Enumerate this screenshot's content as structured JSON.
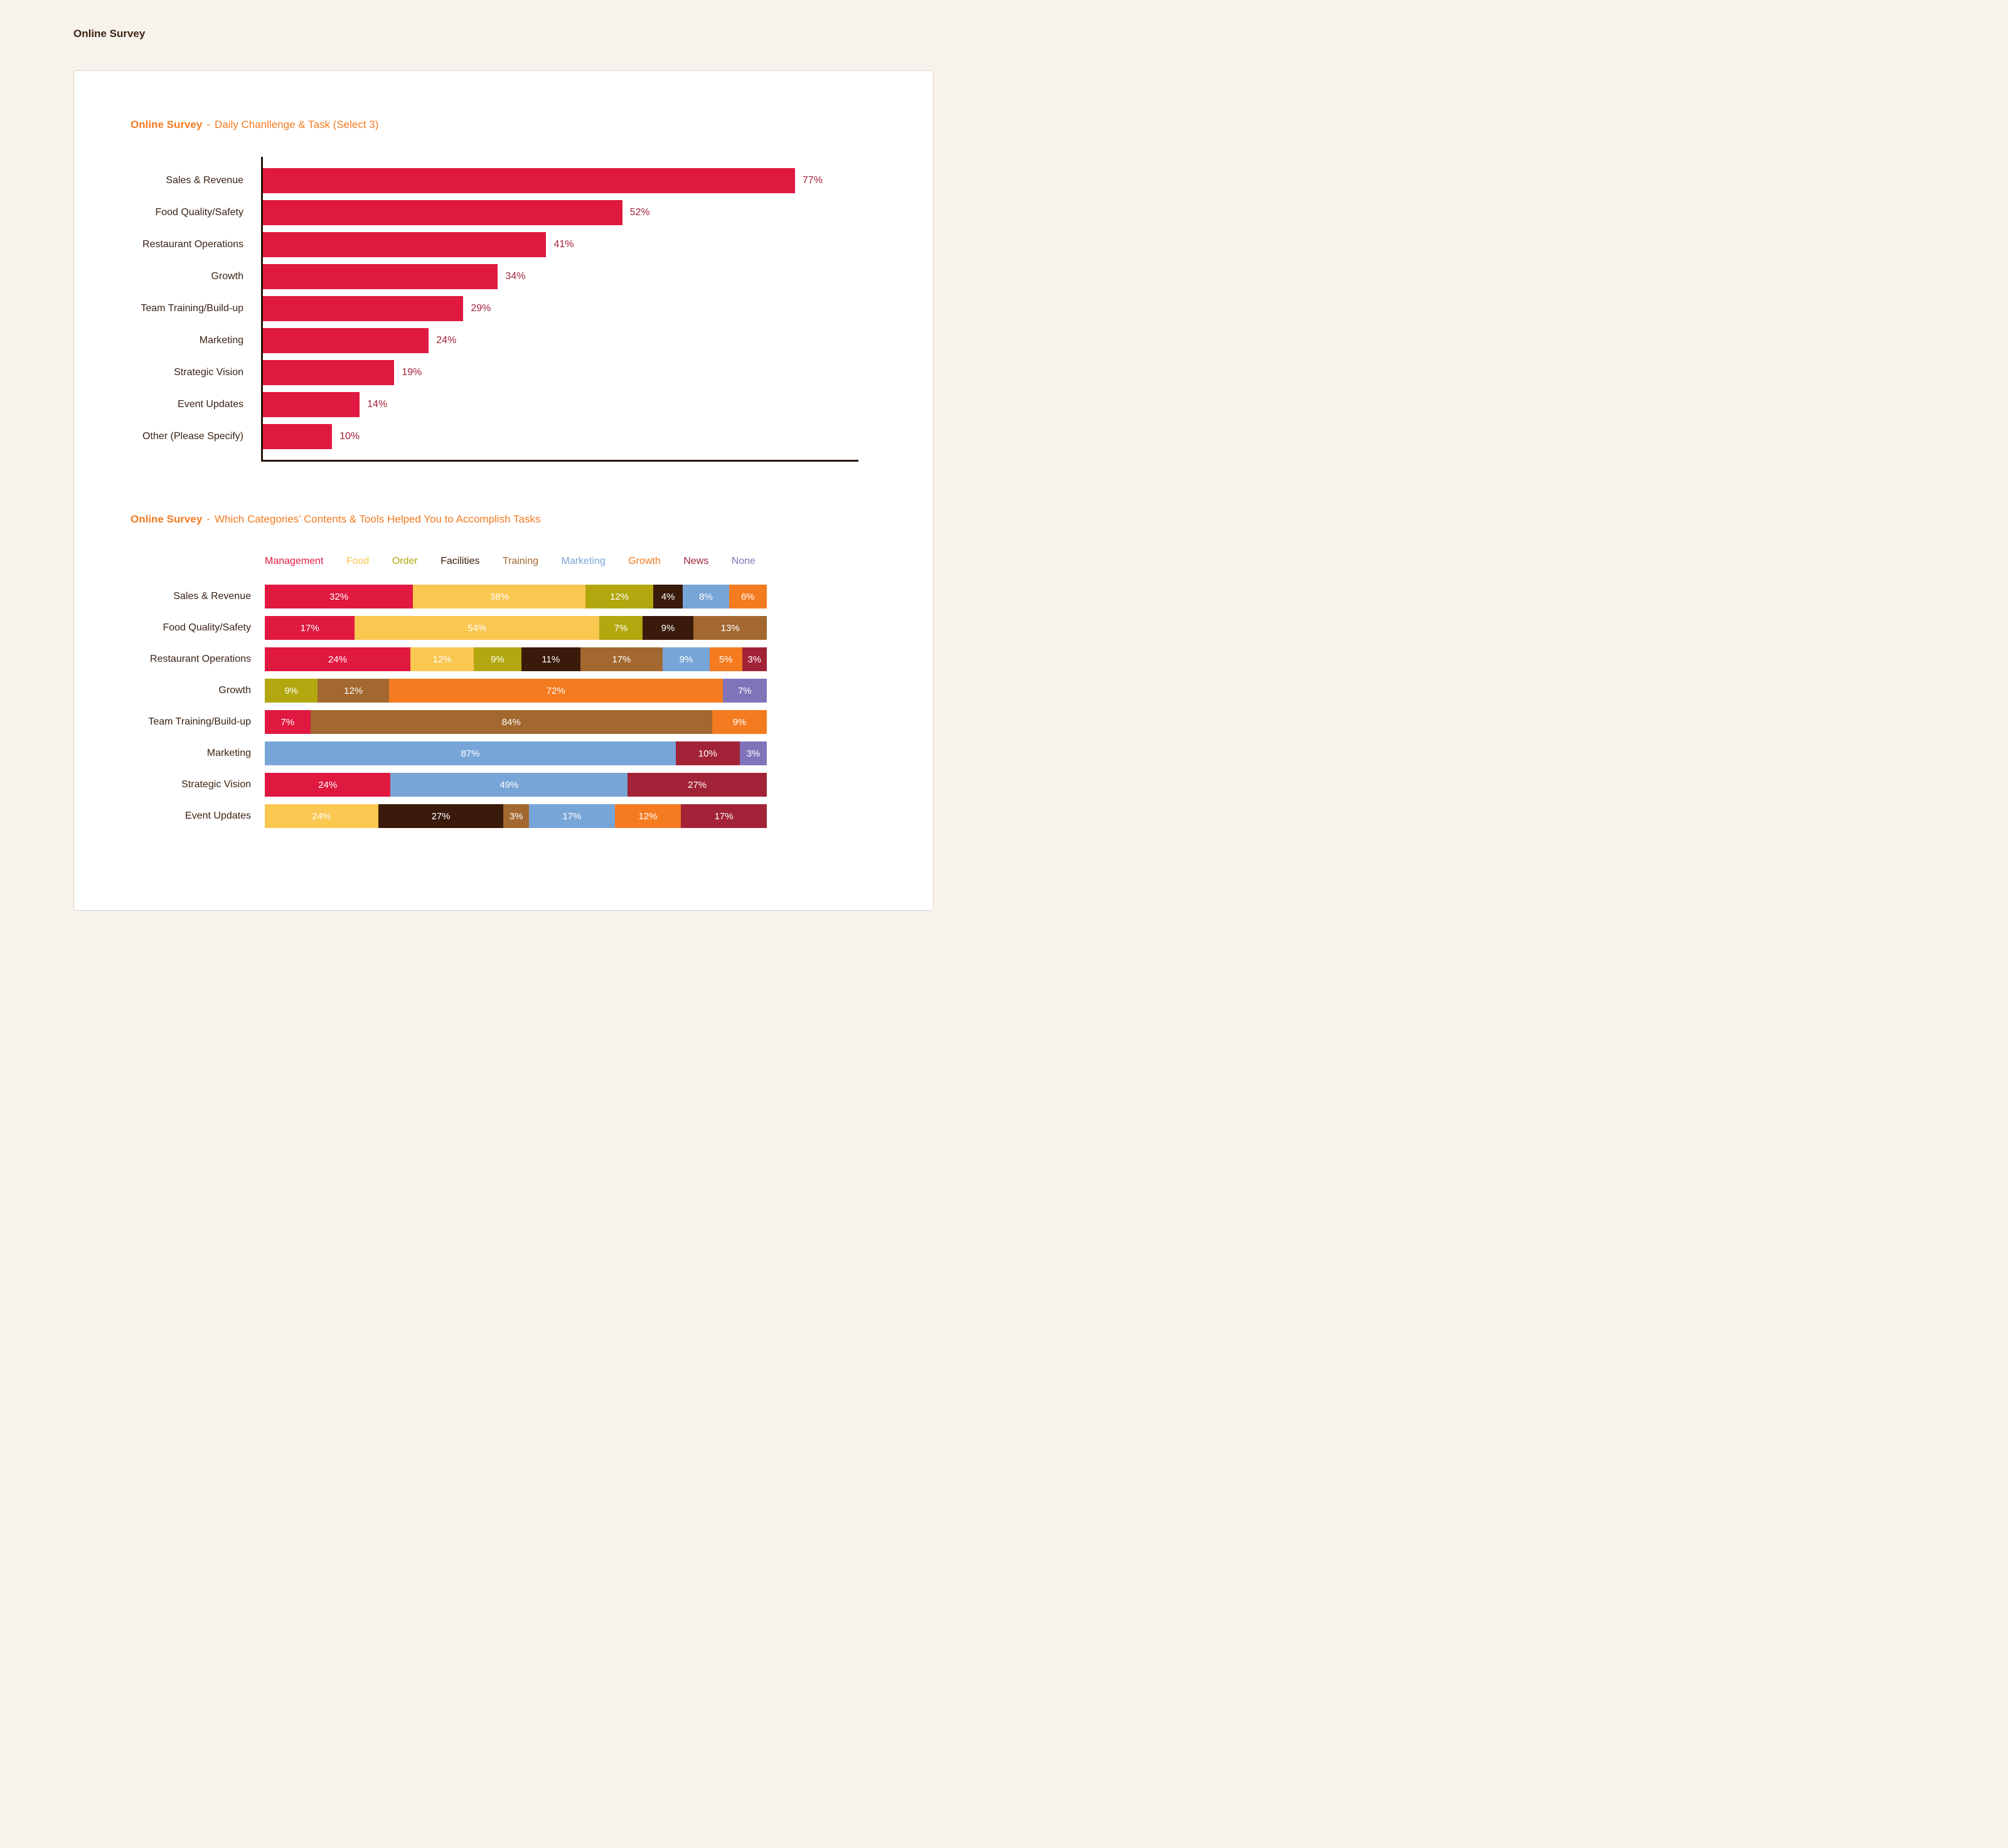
{
  "page": {
    "header": "Online Survey"
  },
  "titles": {
    "chart1": {
      "brand": "Online Survey",
      "dash": "-",
      "rest": "Daily Chanllenge & Task (Select 3)"
    },
    "chart2": {
      "brand": "Online Survey",
      "dash": "-",
      "rest": "Which Categories’ Contents & Tools Helped You to Accomplish Tasks"
    }
  },
  "colors": {
    "background": "#f8f2ec",
    "card_background": "#ffffff",
    "card_border": "#ddd3cb",
    "title_orange": "#f47b21",
    "text_dark": "#3b2314",
    "axis": "#2a1106",
    "bar_red": "#e01940",
    "value_label": "#a22337",
    "segment_label": "#ffffff",
    "series": {
      "Management": "#e01940",
      "Food": "#fac751",
      "Order": "#b2a70e",
      "Facilities": "#3a1a0b",
      "Training": "#a2682f",
      "Marketing": "#78a5d8",
      "Growth": "#f47b20",
      "News": "#a22337",
      "None": "#8173ba"
    }
  },
  "chart_data": [
    {
      "type": "bar",
      "orientation": "horizontal",
      "title": "Online Survey - Daily Chanllenge & Task (Select 3)",
      "categories": [
        "Sales & Revenue",
        "Food Quality/Safety",
        "Restaurant Operations",
        "Growth",
        "Team Training/Build-up",
        "Marketing",
        "Strategic Vision",
        "Event Updates",
        "Other (Please Specify)"
      ],
      "values": [
        77,
        52,
        41,
        34,
        29,
        24,
        19,
        14,
        10
      ],
      "value_suffix": "%",
      "xlim": [
        0,
        86
      ],
      "grid": false,
      "bar_color": "#e01940"
    },
    {
      "type": "bar",
      "subtype": "stacked",
      "orientation": "horizontal",
      "title": "Online Survey - Which Categories’ Contents & Tools Helped You to Accomplish Tasks",
      "legend": [
        "Management",
        "Food",
        "Order",
        "Facilities",
        "Training",
        "Marketing",
        "Growth",
        "News",
        "None"
      ],
      "legend_position": "top",
      "value_suffix": "%",
      "categories": [
        "Sales & Revenue",
        "Food Quality/Safety",
        "Restaurant Operations",
        "Growth",
        "Team Training/Build-up",
        "Marketing",
        "Strategic Vision",
        "Event Updates"
      ],
      "rows": [
        {
          "category": "Sales & Revenue",
          "segments": [
            {
              "series": "Management",
              "value": 32
            },
            {
              "series": "Food",
              "value": 38
            },
            {
              "series": "Order",
              "value": 12
            },
            {
              "series": "Facilities",
              "value": 4
            },
            {
              "series": "Marketing",
              "value": 8
            },
            {
              "series": "Growth",
              "value": 6
            }
          ]
        },
        {
          "category": "Food Quality/Safety",
          "segments": [
            {
              "series": "Management",
              "value": 17
            },
            {
              "series": "Food",
              "value": 54
            },
            {
              "series": "Order",
              "value": 7
            },
            {
              "series": "Facilities",
              "value": 9
            },
            {
              "series": "Training",
              "value": 13
            }
          ]
        },
        {
          "category": "Restaurant Operations",
          "segments": [
            {
              "series": "Management",
              "value": 24,
              "display_weight": 34
            },
            {
              "series": "Food",
              "value": 12
            },
            {
              "series": "Order",
              "value": 9
            },
            {
              "series": "Facilities",
              "value": 11
            },
            {
              "series": "Training",
              "value": 17
            },
            {
              "series": "Marketing",
              "value": 9
            },
            {
              "series": "Growth",
              "value": 5
            },
            {
              "series": "News",
              "value": 3
            }
          ]
        },
        {
          "category": "Growth",
          "segments": [
            {
              "series": "Order",
              "value": 9
            },
            {
              "series": "Training",
              "value": 12
            },
            {
              "series": "Growth",
              "value": 72
            },
            {
              "series": "None",
              "value": 7
            }
          ]
        },
        {
          "category": "Team Training/Build-up",
          "segments": [
            {
              "series": "Management",
              "value": 7
            },
            {
              "series": "Training",
              "value": 84
            },
            {
              "series": "Growth",
              "value": 9
            }
          ]
        },
        {
          "category": "Marketing",
          "segments": [
            {
              "series": "Marketing",
              "value": 87
            },
            {
              "series": "News",
              "value": 10
            },
            {
              "series": "None",
              "value": 3
            }
          ]
        },
        {
          "category": "Strategic Vision",
          "segments": [
            {
              "series": "Management",
              "value": 24
            },
            {
              "series": "Marketing",
              "value": 49
            },
            {
              "series": "News",
              "value": 27
            }
          ]
        },
        {
          "category": "Event Updates",
          "segments": [
            {
              "series": "Food",
              "value": 24
            },
            {
              "series": "Facilities",
              "value": 27
            },
            {
              "series": "Training",
              "value": 3
            },
            {
              "series": "Marketing",
              "value": 17
            },
            {
              "series": "Growth",
              "value": 12
            },
            {
              "series": "News",
              "value": 17
            }
          ]
        }
      ]
    }
  ]
}
